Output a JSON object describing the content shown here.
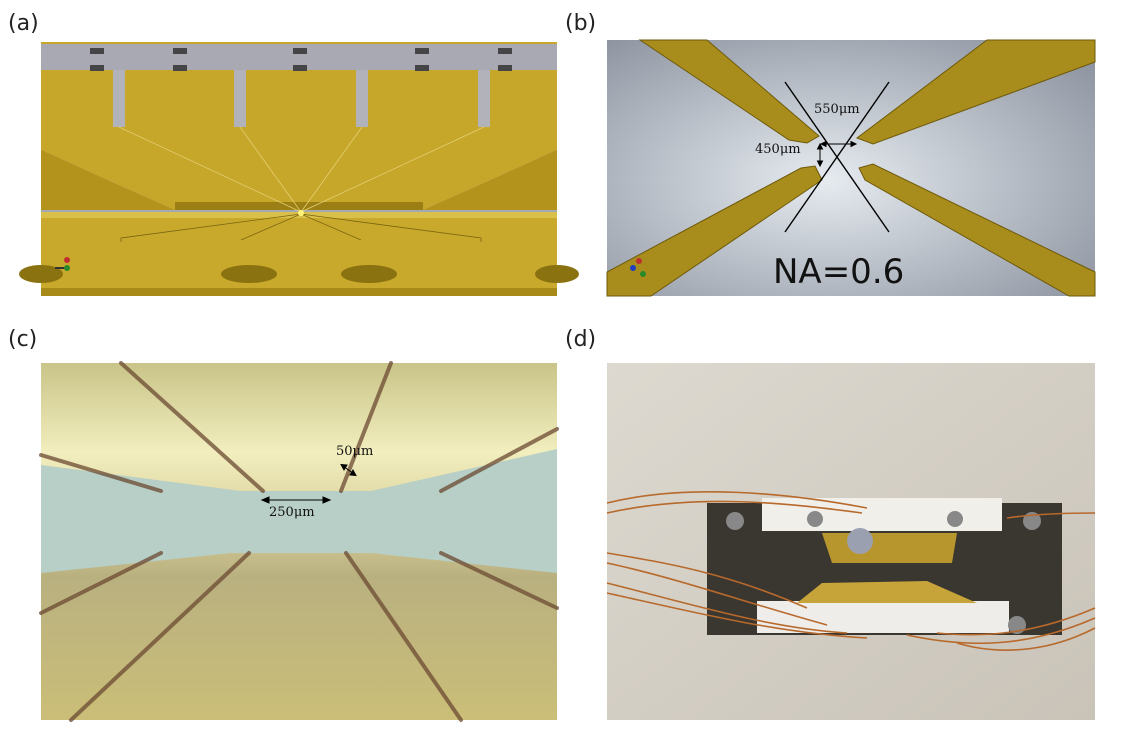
{
  "panels": [
    {
      "label": "(a)"
    },
    {
      "label": "(b)",
      "annotations": [
        "550μm",
        "450μm",
        "NA=0.6"
      ]
    },
    {
      "label": "(c)",
      "annotations": [
        "50μm",
        "250μm"
      ]
    },
    {
      "label": "(d)"
    }
  ]
}
